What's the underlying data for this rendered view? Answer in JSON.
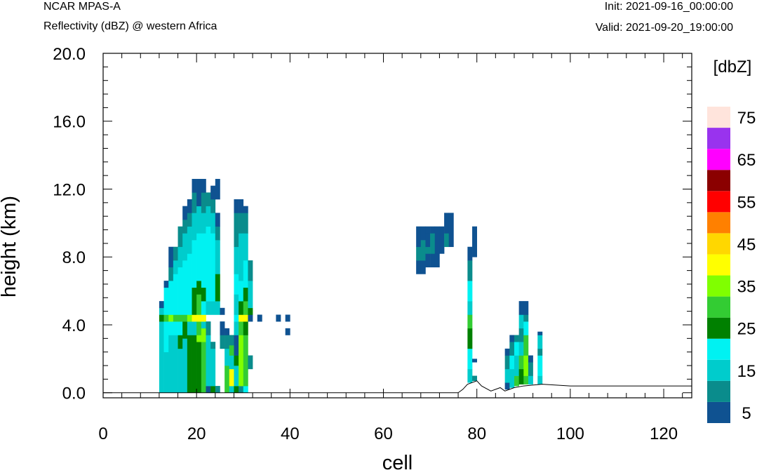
{
  "header": {
    "left_top": "NCAR MPAS-A",
    "left_bottom": "Reflectivity (dBZ) @ western Africa",
    "right_top": "Init: 2021-09-16_00:00:00",
    "right_bottom": "Valid: 2021-09-20_19:00:00"
  },
  "chart_data": {
    "type": "heatmap",
    "title": "Reflectivity (dBZ) @ western Africa",
    "xlabel": "cell",
    "ylabel": "height (km)",
    "xlim": [
      0,
      126
    ],
    "ylim": [
      -0.3,
      20.0
    ],
    "x_ticks": [
      "0",
      "20",
      "40",
      "60",
      "80",
      "100",
      "120"
    ],
    "y_ticks": [
      "0.0",
      "4.0",
      "8.0",
      "12.0",
      "16.0",
      "20.0"
    ],
    "colorbar": {
      "unit_label": "[dbZ]",
      "tick_labels": [
        "5",
        "15",
        "25",
        "35",
        "45",
        "55",
        "65",
        "75"
      ],
      "levels": [
        5,
        10,
        15,
        20,
        25,
        30,
        35,
        40,
        45,
        50,
        55,
        60,
        65,
        70,
        75
      ],
      "colors": [
        "#0f5291",
        "#0a8c8c",
        "#00cccc",
        "#00f2f2",
        "#008000",
        "#33cc33",
        "#80ff00",
        "#ffff00",
        "#ffd700",
        "#ff8000",
        "#ff0000",
        "#8b0000",
        "#ff00ff",
        "#9933ee",
        "#ffe4dc"
      ]
    },
    "terrain": [
      [
        0,
        0
      ],
      [
        76,
        0
      ],
      [
        77,
        0.2
      ],
      [
        78,
        0.5
      ],
      [
        80,
        0.7
      ],
      [
        81,
        0.4
      ],
      [
        83,
        0.1
      ],
      [
        85,
        0.3
      ],
      [
        86,
        0.1
      ],
      [
        88,
        0.3
      ],
      [
        90,
        0.4
      ],
      [
        94,
        0.5
      ],
      [
        100,
        0.4
      ],
      [
        110,
        0.4
      ],
      [
        126,
        0.4
      ]
    ],
    "columns": [
      {
        "x": 12,
        "cells": [
          [
            0,
            4.2,
            15
          ],
          [
            4.2,
            4.6,
            25
          ],
          [
            4.6,
            5.0,
            15
          ],
          [
            5.0,
            5.4,
            5
          ]
        ]
      },
      {
        "x": 13,
        "cells": [
          [
            0,
            2.4,
            15
          ],
          [
            2.4,
            4.2,
            20
          ],
          [
            4.2,
            4.6,
            30
          ],
          [
            4.6,
            6.2,
            20
          ],
          [
            6.2,
            6.6,
            5
          ]
        ]
      },
      {
        "x": 14,
        "cells": [
          [
            0,
            3.4,
            15
          ],
          [
            3.4,
            4.2,
            20
          ],
          [
            4.2,
            4.6,
            35
          ],
          [
            4.6,
            6.6,
            20
          ],
          [
            6.6,
            7.4,
            10
          ],
          [
            7.4,
            8.6,
            5
          ]
        ]
      },
      {
        "x": 15,
        "cells": [
          [
            0,
            3.4,
            15
          ],
          [
            3.4,
            4.2,
            20
          ],
          [
            4.2,
            4.6,
            30
          ],
          [
            4.6,
            7.0,
            20
          ],
          [
            7.0,
            7.8,
            15
          ],
          [
            7.8,
            8.6,
            10
          ]
        ]
      },
      {
        "x": 16,
        "cells": [
          [
            0,
            2.6,
            15
          ],
          [
            2.6,
            3.4,
            25
          ],
          [
            3.4,
            4.2,
            20
          ],
          [
            4.2,
            4.6,
            30
          ],
          [
            4.6,
            7.4,
            20
          ],
          [
            7.4,
            8.6,
            15
          ],
          [
            8.6,
            9.8,
            10
          ]
        ]
      },
      {
        "x": 17,
        "cells": [
          [
            0,
            3.2,
            15
          ],
          [
            3.2,
            4.2,
            25
          ],
          [
            4.2,
            4.6,
            30
          ],
          [
            4.6,
            7.8,
            20
          ],
          [
            7.8,
            9.4,
            15
          ],
          [
            9.4,
            10.2,
            10
          ],
          [
            10.2,
            11.0,
            5
          ]
        ]
      },
      {
        "x": 18,
        "cells": [
          [
            0,
            3.4,
            25
          ],
          [
            3.4,
            4.2,
            15
          ],
          [
            4.2,
            4.6,
            35
          ],
          [
            4.6,
            8.2,
            20
          ],
          [
            8.2,
            9.8,
            15
          ],
          [
            9.8,
            10.6,
            10
          ],
          [
            10.6,
            11.4,
            5
          ]
        ]
      },
      {
        "x": 19,
        "cells": [
          [
            0,
            3.4,
            25
          ],
          [
            3.4,
            4.2,
            15
          ],
          [
            4.2,
            4.6,
            40
          ],
          [
            4.6,
            6.2,
            25
          ],
          [
            6.2,
            9.0,
            20
          ],
          [
            9.0,
            10.6,
            15
          ],
          [
            10.6,
            11.8,
            10
          ],
          [
            11.8,
            12.6,
            5
          ]
        ]
      },
      {
        "x": 20,
        "cells": [
          [
            0,
            3.0,
            25
          ],
          [
            3.0,
            3.4,
            35
          ],
          [
            3.4,
            4.2,
            30
          ],
          [
            4.2,
            4.6,
            40
          ],
          [
            4.6,
            5.8,
            30
          ],
          [
            5.8,
            6.6,
            25
          ],
          [
            6.6,
            9.4,
            20
          ],
          [
            9.4,
            11.0,
            15
          ],
          [
            11.0,
            12.6,
            5
          ]
        ]
      },
      {
        "x": 21,
        "cells": [
          [
            0,
            3.0,
            30
          ],
          [
            3.0,
            3.8,
            35
          ],
          [
            3.8,
            4.2,
            15
          ],
          [
            4.2,
            4.6,
            40
          ],
          [
            4.6,
            5.4,
            20
          ],
          [
            5.4,
            6.2,
            25
          ],
          [
            6.2,
            9.4,
            20
          ],
          [
            9.4,
            10.6,
            15
          ],
          [
            10.6,
            11.8,
            10
          ],
          [
            11.8,
            12.6,
            5
          ]
        ]
      },
      {
        "x": 22,
        "cells": [
          [
            0,
            0.4,
            5
          ],
          [
            0.4,
            3.4,
            15
          ],
          [
            3.4,
            4.2,
            10
          ],
          [
            4.6,
            5.4,
            15
          ],
          [
            5.4,
            9.8,
            20
          ],
          [
            9.8,
            11.0,
            15
          ],
          [
            11.0,
            11.8,
            10
          ]
        ]
      },
      {
        "x": 23,
        "cells": [
          [
            0,
            0.4,
            25
          ],
          [
            0.4,
            2.6,
            15
          ],
          [
            2.6,
            3.0,
            10
          ],
          [
            4.6,
            5.4,
            15
          ],
          [
            5.4,
            9.4,
            20
          ],
          [
            9.4,
            10.6,
            15
          ],
          [
            10.6,
            11.4,
            10
          ],
          [
            11.4,
            12.2,
            5
          ]
        ]
      },
      {
        "x": 24,
        "cells": [
          [
            0,
            0.4,
            10
          ],
          [
            4.6,
            5.4,
            15
          ],
          [
            5.4,
            7.0,
            25
          ],
          [
            7.0,
            9.0,
            15
          ],
          [
            9.0,
            9.8,
            10
          ],
          [
            9.8,
            10.6,
            5
          ],
          [
            11.4,
            12.6,
            5
          ]
        ]
      },
      {
        "x": 25,
        "cells": [
          [
            2.6,
            3.4,
            10
          ],
          [
            3.4,
            4.2,
            5
          ],
          [
            4.6,
            5.0,
            5
          ]
        ]
      },
      {
        "x": 26,
        "cells": [
          [
            0,
            1.6,
            30
          ],
          [
            1.6,
            2.6,
            15
          ],
          [
            2.6,
            3.4,
            10
          ],
          [
            3.4,
            3.8,
            5
          ]
        ]
      },
      {
        "x": 27,
        "cells": [
          [
            0,
            0.4,
            15
          ],
          [
            0.4,
            1.4,
            40
          ],
          [
            1.4,
            2.2,
            15
          ],
          [
            2.2,
            2.8,
            30
          ],
          [
            2.8,
            3.4,
            10
          ]
        ]
      },
      {
        "x": 28,
        "cells": [
          [
            0,
            0.4,
            25
          ],
          [
            0.4,
            1.6,
            15
          ],
          [
            1.6,
            2.2,
            25
          ],
          [
            2.2,
            3.4,
            5
          ],
          [
            3.4,
            4.2,
            15
          ],
          [
            4.2,
            4.6,
            20
          ],
          [
            4.6,
            5.8,
            15
          ],
          [
            5.8,
            7.0,
            20
          ],
          [
            7.0,
            8.6,
            15
          ],
          [
            8.6,
            10.6,
            10
          ],
          [
            10.6,
            11.4,
            5
          ]
        ]
      },
      {
        "x": 29,
        "cells": [
          [
            0,
            0.4,
            10
          ],
          [
            0.4,
            3.4,
            35
          ],
          [
            3.4,
            4.2,
            30
          ],
          [
            4.2,
            4.6,
            40
          ],
          [
            4.6,
            5.4,
            25
          ],
          [
            5.4,
            6.6,
            20
          ],
          [
            6.6,
            9.4,
            15
          ],
          [
            9.4,
            10.6,
            10
          ],
          [
            10.6,
            11.4,
            5
          ]
        ]
      },
      {
        "x": 30,
        "cells": [
          [
            0,
            0.4,
            20
          ],
          [
            0.4,
            3.4,
            30
          ],
          [
            3.4,
            4.2,
            25
          ],
          [
            4.2,
            4.6,
            40
          ],
          [
            4.6,
            5.4,
            30
          ],
          [
            5.4,
            6.2,
            25
          ],
          [
            6.2,
            7.8,
            20
          ],
          [
            7.8,
            9.4,
            15
          ],
          [
            9.4,
            10.6,
            10
          ],
          [
            10.6,
            11.0,
            5
          ]
        ]
      },
      {
        "x": 31,
        "cells": [
          [
            1.4,
            2.2,
            10
          ],
          [
            4.2,
            4.6,
            5
          ],
          [
            4.6,
            5.0,
            25
          ],
          [
            5.0,
            6.6,
            15
          ],
          [
            6.6,
            7.8,
            10
          ]
        ]
      },
      {
        "x": 33,
        "cells": [
          [
            4.2,
            4.6,
            5
          ]
        ]
      },
      {
        "x": 37,
        "cells": [
          [
            4.2,
            4.6,
            5
          ]
        ]
      },
      {
        "x": 39,
        "cells": [
          [
            3.4,
            3.8,
            5
          ],
          [
            4.2,
            4.6,
            5
          ]
        ]
      },
      {
        "x": 67,
        "cells": [
          [
            7.0,
            7.8,
            5
          ],
          [
            7.8,
            8.6,
            10
          ],
          [
            8.6,
            9.8,
            5
          ]
        ]
      },
      {
        "x": 68,
        "cells": [
          [
            7.0,
            7.8,
            5
          ],
          [
            7.8,
            9.0,
            10
          ],
          [
            9.0,
            9.8,
            5
          ]
        ]
      },
      {
        "x": 69,
        "cells": [
          [
            7.4,
            8.2,
            5
          ],
          [
            8.2,
            8.6,
            10
          ],
          [
            8.6,
            9.4,
            5
          ],
          [
            9.4,
            9.8,
            5
          ]
        ]
      },
      {
        "x": 70,
        "cells": [
          [
            7.4,
            8.2,
            5
          ],
          [
            8.2,
            9.4,
            10
          ],
          [
            9.4,
            9.8,
            5
          ]
        ]
      },
      {
        "x": 71,
        "cells": [
          [
            7.4,
            8.2,
            5
          ],
          [
            8.2,
            9.8,
            5
          ]
        ]
      },
      {
        "x": 72,
        "cells": [
          [
            8.2,
            9.8,
            5
          ]
        ]
      },
      {
        "x": 73,
        "cells": [
          [
            8.6,
            9.4,
            10
          ],
          [
            9.4,
            10.6,
            5
          ]
        ]
      },
      {
        "x": 74,
        "cells": [
          [
            8.6,
            10.6,
            5
          ]
        ]
      },
      {
        "x": 78,
        "cells": [
          [
            0.6,
            1.4,
            15
          ],
          [
            1.4,
            2.6,
            20
          ],
          [
            2.6,
            3.8,
            25
          ],
          [
            3.8,
            4.6,
            30
          ],
          [
            4.6,
            5.4,
            15
          ],
          [
            5.4,
            6.6,
            20
          ],
          [
            6.6,
            7.8,
            10
          ],
          [
            7.8,
            8.6,
            5
          ]
        ]
      },
      {
        "x": 79,
        "cells": [
          [
            0.7,
            1.0,
            10
          ],
          [
            1.8,
            2.0,
            5
          ],
          [
            8.0,
            9.8,
            5
          ]
        ]
      },
      {
        "x": 86,
        "cells": [
          [
            0.2,
            0.6,
            5
          ],
          [
            0.6,
            1.4,
            15
          ],
          [
            1.4,
            2.2,
            10
          ],
          [
            2.2,
            2.6,
            5
          ]
        ]
      },
      {
        "x": 87,
        "cells": [
          [
            0.3,
            1.4,
            15
          ],
          [
            1.4,
            2.2,
            20
          ],
          [
            2.2,
            3.0,
            10
          ],
          [
            3.0,
            3.4,
            5
          ]
        ]
      },
      {
        "x": 88,
        "cells": [
          [
            0.4,
            1.0,
            30
          ],
          [
            1.0,
            2.2,
            15
          ],
          [
            2.2,
            3.0,
            20
          ],
          [
            3.0,
            3.4,
            10
          ]
        ]
      },
      {
        "x": 89,
        "cells": [
          [
            0.5,
            1.4,
            25
          ],
          [
            1.4,
            2.2,
            30
          ],
          [
            2.2,
            3.0,
            15
          ],
          [
            3.0,
            3.8,
            10
          ],
          [
            3.8,
            4.6,
            15
          ],
          [
            4.6,
            5.4,
            5
          ]
        ]
      },
      {
        "x": 90,
        "cells": [
          [
            0.5,
            1.0,
            30
          ],
          [
            1.0,
            2.2,
            35
          ],
          [
            2.2,
            3.4,
            30
          ],
          [
            3.4,
            4.2,
            20
          ],
          [
            4.2,
            4.6,
            10
          ],
          [
            4.6,
            5.4,
            5
          ]
        ]
      },
      {
        "x": 91,
        "cells": [
          [
            0.5,
            1.0,
            15
          ],
          [
            1.0,
            1.8,
            10
          ],
          [
            1.8,
            2.2,
            5
          ]
        ]
      },
      {
        "x": 93,
        "cells": [
          [
            0.5,
            1.0,
            15
          ],
          [
            1.0,
            2.2,
            20
          ],
          [
            2.2,
            2.6,
            10
          ],
          [
            2.6,
            3.4,
            15
          ],
          [
            3.4,
            3.6,
            5
          ]
        ]
      }
    ]
  }
}
